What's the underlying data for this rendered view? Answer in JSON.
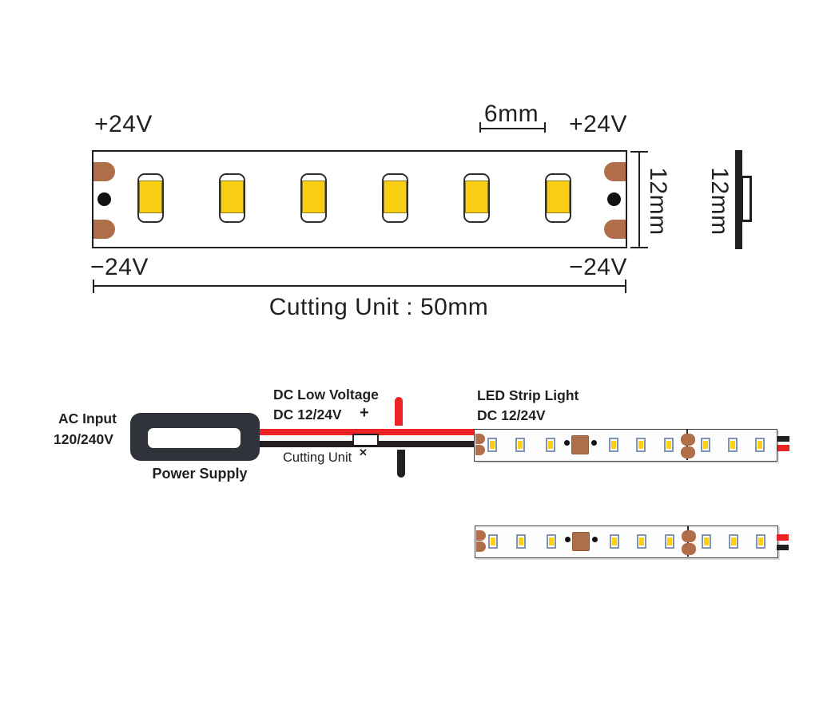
{
  "plan_view": {
    "top_left_voltage": "+24V",
    "top_right_voltage": "+24V",
    "bottom_left_voltage": "−24V",
    "bottom_right_voltage": "−24V",
    "led_gap_dimension": "6mm",
    "strip_width_dimension": "12mm",
    "profile_width_dimension": "12mm",
    "cutting_unit_dimension": "Cutting Unit : 50mm",
    "led_count": 6
  },
  "wiring": {
    "ac_input_line1": "AC Input",
    "ac_input_line2": "120/240V",
    "power_supply_label": "Power Supply",
    "dc_low_voltage_line1": "DC Low Voltage",
    "dc_low_voltage_line2": "DC 12/24V",
    "plus_sign": "+",
    "cutting_unit_label": "Cutting Unit",
    "cut_mark": "✕",
    "led_strip_line1": "LED Strip Light",
    "led_strip_line2": "DC 12/24V",
    "strip_count": 2,
    "leds_per_strip": 9
  },
  "colors": {
    "wire_red": "#EC2224",
    "wire_black": "#231F20",
    "copper_pad": "#B06E4B",
    "led_yellow": "#F9CD11",
    "psu_body": "#30333A",
    "mini_led_border": "#8195B0"
  }
}
